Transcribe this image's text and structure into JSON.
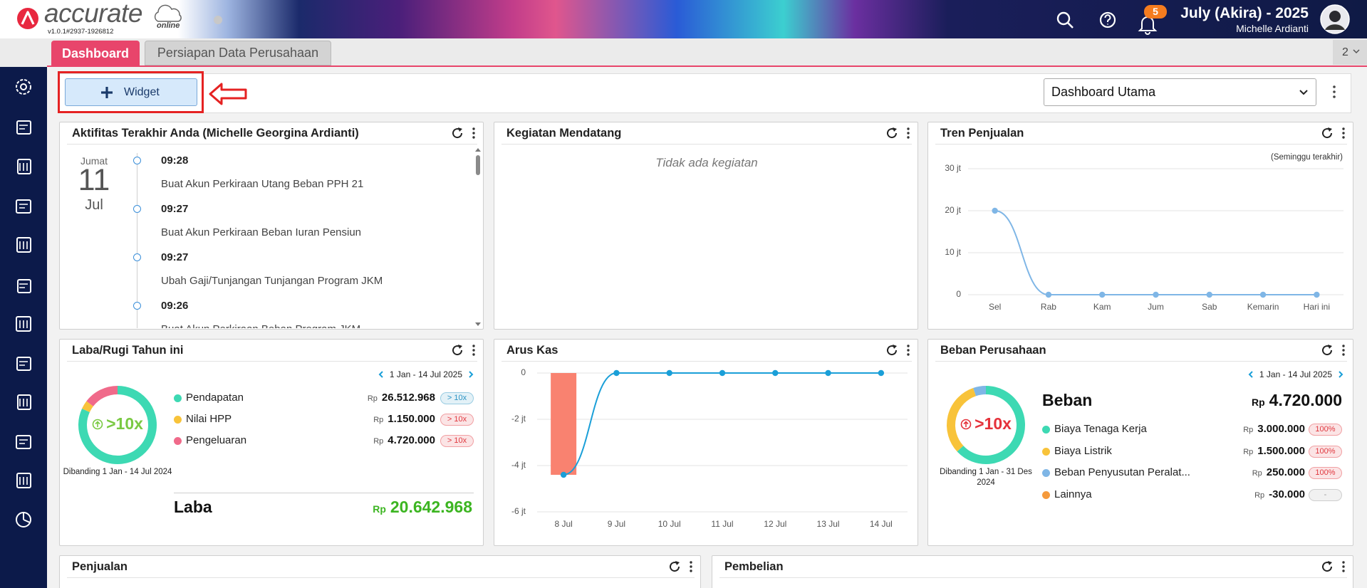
{
  "header": {
    "logo": "accurate",
    "logo_sub": "online",
    "version": "v1.0.1#2937-1926812",
    "notifications": "5",
    "period": "July (Akira) - 2025",
    "user": "Michelle Ardianti"
  },
  "tabs": [
    "Dashboard",
    "Persiapan Data Perusahaan"
  ],
  "tab_overflow": "2",
  "toolbar": {
    "widget_button": "Widget",
    "dashboard_select": "Dashboard Utama"
  },
  "activity": {
    "title": "Aktifitas Terakhir Anda (Michelle Georgina Ardianti)",
    "day": "Jumat",
    "date": "11",
    "month": "Jul",
    "items": [
      {
        "time": "09:28",
        "text": "Buat Akun Perkiraan Utang Beban PPH 21"
      },
      {
        "time": "09:27",
        "text": "Buat Akun Perkiraan Beban Iuran Pensiun"
      },
      {
        "time": "09:27",
        "text": "Ubah Gaji/Tunjangan Tunjangan Program JKM"
      },
      {
        "time": "09:26",
        "text": "Buat Akun Perkiraan Beban Program JKM"
      }
    ]
  },
  "upcoming": {
    "title": "Kegiatan Mendatang",
    "empty": "Tidak ada kegiatan"
  },
  "sales_trend": {
    "type": "line",
    "title": "Tren Penjualan",
    "note": "(Seminggu terakhir)",
    "categories": [
      "Sel",
      "Rab",
      "Kam",
      "Jum",
      "Sab",
      "Kemarin",
      "Hari ini"
    ],
    "values": [
      20,
      0,
      0,
      0,
      0,
      0,
      0
    ],
    "color": "#7fb6e6",
    "ylim": [
      0,
      30
    ],
    "yticks": [
      0,
      {
        "value": 10,
        "label": "10 jt"
      },
      {
        "value": 20,
        "label": "20 jt"
      },
      {
        "value": 30,
        "label": "30 jt"
      }
    ],
    "grid": true
  },
  "profit_loss": {
    "title": "Laba/Rugi Tahun ini",
    "period": "1 Jan - 14 Jul 2025",
    "ratio": ">10x",
    "compare": "Dibanding 1 Jan - 14 Jul 2024",
    "currency": "Rp",
    "items": [
      {
        "name": "Pendapatan",
        "color": "#3dd9b3",
        "amount": {
          "value": 26512968,
          "label": "26.512.968"
        },
        "badge": "> 10x",
        "badge_color": "#2b93c4"
      },
      {
        "name": "Nilai HPP",
        "color": "#f8c33a",
        "amount": {
          "value": 1150000,
          "label": "1.150.000"
        },
        "badge": "> 10x",
        "badge_color": "#e0383f"
      },
      {
        "name": "Pengeluaran",
        "color": "#f06a8a",
        "amount": {
          "value": 4720000,
          "label": "4.720.000"
        },
        "badge": "> 10x",
        "badge_color": "#e0383f"
      }
    ],
    "total_name": "Laba",
    "total": "20.642.968"
  },
  "cash_flow": {
    "type": "bar-line",
    "title": "Arus Kas",
    "categories": [
      "8 Jul",
      "9 Jul",
      "10 Jul",
      "11 Jul",
      "12 Jul",
      "13 Jul",
      "14 Jul"
    ],
    "bar_values": [
      -4.4,
      0,
      0,
      0,
      0,
      0,
      0
    ],
    "line_values": [
      -4.4,
      0,
      0,
      0,
      0,
      0,
      0
    ],
    "bar_color": "#f98270",
    "line_color": "#1a9fd8",
    "ylim": [
      -6,
      0
    ],
    "yticks": [
      0,
      {
        "value": -2,
        "label": "-2 jt"
      },
      {
        "value": -4,
        "label": "-4 jt"
      },
      {
        "value": -6,
        "label": "-6 jt"
      }
    ],
    "grid": true
  },
  "expenses": {
    "title": "Beban Perusahaan",
    "period": "1 Jan - 14 Jul 2025",
    "ratio": ">10x",
    "compare": "Dibanding 1 Jan - 31 Des 2024",
    "currency": "Rp",
    "total_name": "Beban",
    "total": "4.720.000",
    "items": [
      {
        "name": "Biaya Tenaga Kerja",
        "color": "#3dd9b3",
        "amount": {
          "value": 3000000,
          "label": "3.000.000"
        },
        "badge": "100%",
        "badge_color": "#e0383f"
      },
      {
        "name": "Biaya Listrik",
        "color": "#f8c33a",
        "amount": {
          "value": 1500000,
          "label": "1.500.000"
        },
        "badge": "100%",
        "badge_color": "#e0383f"
      },
      {
        "name": "Beban Penyusutan Peralat...",
        "color": "#7fb6e6",
        "amount": {
          "value": 250000,
          "label": "250.000"
        },
        "badge": "100%",
        "badge_color": "#e0383f"
      },
      {
        "name": "Lainnya",
        "color": "#f59a3c",
        "amount": {
          "value": -30000,
          "label": "-30.000"
        },
        "badge": "-",
        "badge_color": "#999999"
      }
    ]
  },
  "sales": {
    "title": "Penjualan"
  },
  "purchases": {
    "title": "Pembelian"
  }
}
